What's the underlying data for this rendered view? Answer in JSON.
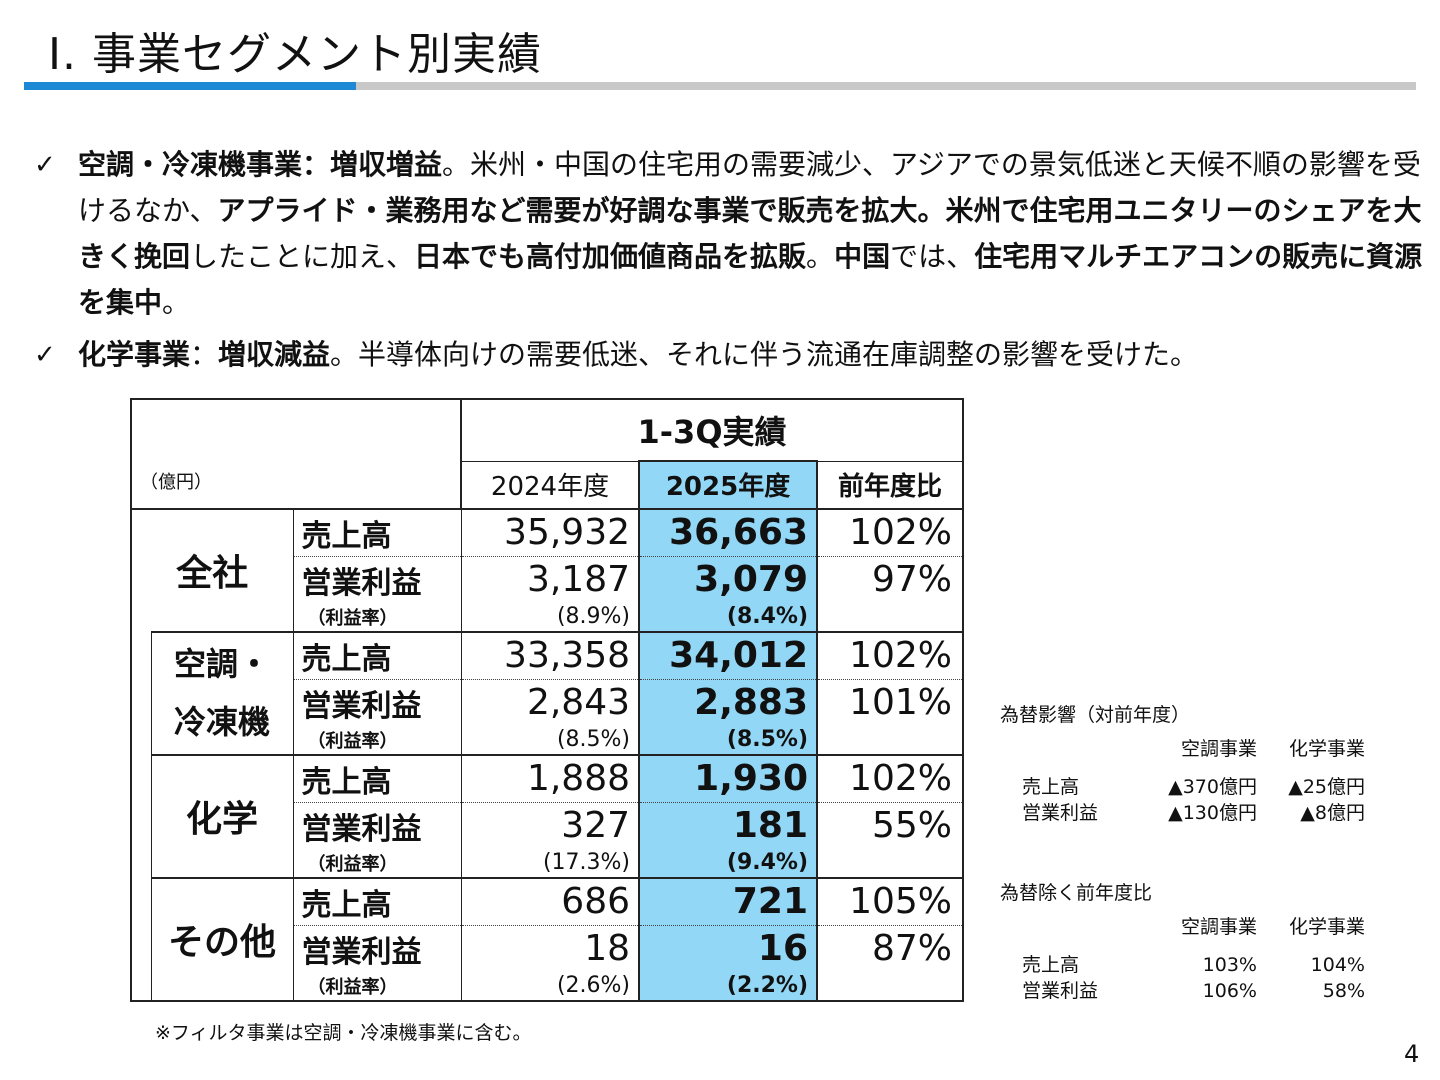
{
  "title": "Ⅰ. 事業セグメント別実績",
  "bullets": [
    {
      "check": "✓",
      "segments": [
        {
          "t": "空調・冷凍機事業：増収増益",
          "b": true
        },
        {
          "t": "。米州・中国の住宅用の需要減少、アジアでの景気低迷と天候不順の影響を受けるなか、",
          "b": false
        },
        {
          "t": "アプライド・業務用など需要が好調な事業で販売を拡大。米州で住宅用ユニタリーのシェアを大きく挽回",
          "b": true
        },
        {
          "t": "したことに加え、",
          "b": false
        },
        {
          "t": "日本でも高付加価値商品を拡販",
          "b": true
        },
        {
          "t": "。",
          "b": false
        },
        {
          "t": "中国",
          "b": true
        },
        {
          "t": "では、",
          "b": false
        },
        {
          "t": "住宅用マルチエアコンの販売に資源を集中",
          "b": true
        },
        {
          "t": "。",
          "b": false
        }
      ]
    },
    {
      "check": "✓",
      "segments": [
        {
          "t": "化学事業",
          "b": true
        },
        {
          "t": "：",
          "b": false
        },
        {
          "t": "増収減益",
          "b": true
        },
        {
          "t": "。半導体向けの需要低迷、それに伴う流通在庫調整の影響を受けた。",
          "b": false
        }
      ]
    }
  ],
  "table": {
    "unit": "（億円）",
    "period": "1-3Q実績",
    "col_2024": "2024年度",
    "col_2025": "2025年度",
    "col_yoy": "前年度比",
    "label_sales": "売上高",
    "label_op": "営業利益",
    "label_margin": "（利益率）",
    "segments": [
      {
        "name": "全社",
        "sales": [
          "35,932",
          "36,663",
          "102%"
        ],
        "op": [
          "3,187",
          "3,079",
          "97%"
        ],
        "margin": [
          "(8.9%)",
          "(8.4%)"
        ]
      },
      {
        "name1": "空調・",
        "name2": "冷凍機",
        "sales": [
          "33,358",
          "34,012",
          "102%"
        ],
        "op": [
          "2,843",
          "2,883",
          "101%"
        ],
        "margin": [
          "(8.5%)",
          "(8.5%)"
        ]
      },
      {
        "name": "化学",
        "sales": [
          "1,888",
          "1,930",
          "102%"
        ],
        "op": [
          "327",
          "181",
          "55%"
        ],
        "margin": [
          "(17.3%)",
          "(9.4%)"
        ]
      },
      {
        "name": "その他",
        "sales": [
          "686",
          "721",
          "105%"
        ],
        "op": [
          "18",
          "16",
          "87%"
        ],
        "margin": [
          "(2.6%)",
          "(2.2%)"
        ]
      }
    ]
  },
  "footnote": "※フィルタ事業は空調・冷凍機事業に含む。",
  "fx": {
    "title": "為替影響（対前年度）",
    "col_a": "空調事業",
    "col_b": "化学事業",
    "rows": [
      {
        "label": "売上高",
        "a": "▲370億円",
        "b": "▲25億円"
      },
      {
        "label": "営業利益",
        "a": "▲130億円",
        "b": "▲8億円"
      }
    ]
  },
  "exfx": {
    "title": "為替除く前年度比",
    "col_a": "空調事業",
    "col_b": "化学事業",
    "rows": [
      {
        "label": "売上高",
        "a": "103%",
        "b": "104%"
      },
      {
        "label": "営業利益",
        "a": "106%",
        "b": "58%"
      }
    ]
  },
  "page_number": "4"
}
